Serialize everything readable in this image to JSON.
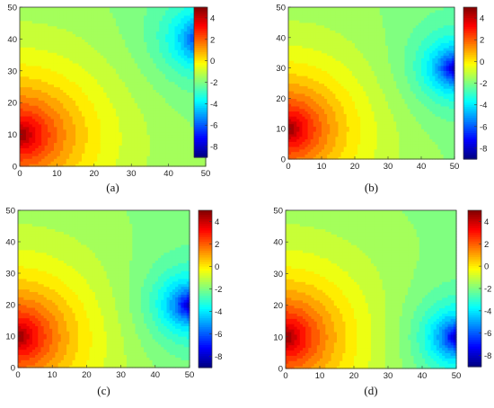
{
  "chart_data": [
    {
      "type": "heatmap",
      "caption": "(a)",
      "x_ticks": [
        0,
        10,
        20,
        30,
        40,
        50
      ],
      "y_ticks": [
        0,
        10,
        20,
        30,
        40,
        50
      ],
      "xlim": [
        0,
        50
      ],
      "ylim": [
        0,
        50
      ],
      "colorbar": {
        "range": [
          -9,
          5
        ],
        "ticks": [
          4,
          2,
          0,
          -2,
          -4,
          -6,
          -8
        ]
      },
      "source": {
        "x": 0,
        "y": 10,
        "value": 5
      },
      "sink": {
        "x": 50,
        "y": 40,
        "value": -9
      }
    },
    {
      "type": "heatmap",
      "caption": "(b)",
      "x_ticks": [
        0,
        10,
        20,
        30,
        40,
        50
      ],
      "y_ticks": [
        0,
        10,
        20,
        30,
        40,
        50
      ],
      "xlim": [
        0,
        50
      ],
      "ylim": [
        0,
        50
      ],
      "colorbar": {
        "range": [
          -9,
          5
        ],
        "ticks": [
          4,
          2,
          0,
          -2,
          -4,
          -6,
          -8
        ]
      },
      "source": {
        "x": 0,
        "y": 10,
        "value": 5
      },
      "sink": {
        "x": 50,
        "y": 30,
        "value": -9
      }
    },
    {
      "type": "heatmap",
      "caption": "(c)",
      "x_ticks": [
        0,
        10,
        20,
        30,
        40,
        50
      ],
      "y_ticks": [
        0,
        10,
        20,
        30,
        40,
        50
      ],
      "xlim": [
        0,
        50
      ],
      "ylim": [
        0,
        50
      ],
      "colorbar": {
        "range": [
          -9,
          5
        ],
        "ticks": [
          4,
          2,
          0,
          -2,
          -4,
          -6,
          -8
        ]
      },
      "source": {
        "x": 0,
        "y": 10,
        "value": 5
      },
      "sink": {
        "x": 50,
        "y": 20,
        "value": -9
      }
    },
    {
      "type": "heatmap",
      "caption": "(d)",
      "x_ticks": [
        0,
        10,
        20,
        30,
        40,
        50
      ],
      "y_ticks": [
        0,
        10,
        20,
        30,
        40,
        50
      ],
      "xlim": [
        0,
        50
      ],
      "ylim": [
        0,
        50
      ],
      "colorbar": {
        "range": [
          -9,
          5
        ],
        "ticks": [
          4,
          2,
          0,
          -2,
          -4,
          -6,
          -8
        ]
      },
      "source": {
        "x": 0,
        "y": 10,
        "value": 5
      },
      "sink": {
        "x": 50,
        "y": 10,
        "value": -9
      }
    }
  ]
}
